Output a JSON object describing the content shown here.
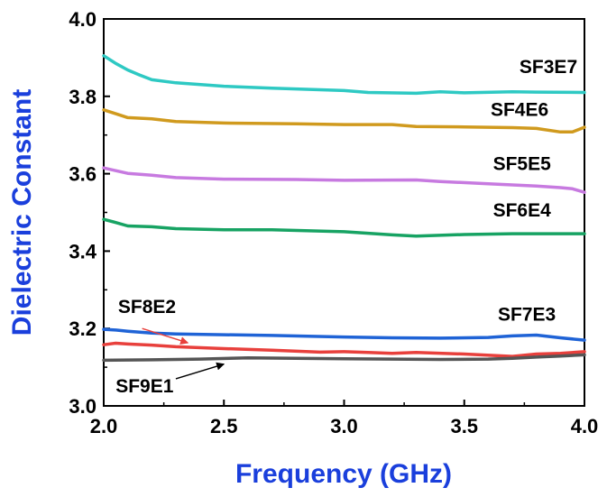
{
  "chart_data": {
    "type": "line",
    "title": "",
    "xlabel": "Frequency (GHz)",
    "ylabel": "Dielectric Constant",
    "xlim": [
      2.0,
      4.0
    ],
    "ylim": [
      3.0,
      4.0
    ],
    "x_ticks": [
      "2.0",
      "2.5",
      "3.0",
      "3.5",
      "4.0"
    ],
    "y_ticks": [
      "3.0",
      "3.2",
      "3.4",
      "3.6",
      "3.8",
      "4.0"
    ],
    "axis_title_color": "#1a3fdc",
    "grid": false,
    "series": [
      {
        "name": "SF3E7",
        "color": "#2ec9c3",
        "x": [
          2.0,
          2.05,
          2.1,
          2.15,
          2.2,
          2.3,
          2.5,
          2.7,
          3.0,
          3.1,
          3.3,
          3.4,
          3.5,
          3.7,
          3.8,
          4.0
        ],
        "y": [
          3.905,
          3.885,
          3.868,
          3.855,
          3.843,
          3.835,
          3.826,
          3.821,
          3.815,
          3.81,
          3.808,
          3.812,
          3.809,
          3.812,
          3.811,
          3.81
        ]
      },
      {
        "name": "SF4E6",
        "color": "#d09a1e",
        "x": [
          2.0,
          2.05,
          2.1,
          2.2,
          2.3,
          2.5,
          2.8,
          3.0,
          3.2,
          3.3,
          3.5,
          3.7,
          3.8,
          3.9,
          3.95,
          4.0
        ],
        "y": [
          3.765,
          3.755,
          3.745,
          3.742,
          3.735,
          3.731,
          3.729,
          3.727,
          3.727,
          3.722,
          3.721,
          3.719,
          3.717,
          3.708,
          3.708,
          3.72
        ]
      },
      {
        "name": "SF5E5",
        "color": "#c77ae0",
        "x": [
          2.0,
          2.05,
          2.1,
          2.2,
          2.3,
          2.5,
          2.8,
          3.0,
          3.3,
          3.4,
          3.6,
          3.8,
          3.9,
          3.95,
          4.0
        ],
        "y": [
          3.615,
          3.608,
          3.601,
          3.596,
          3.59,
          3.586,
          3.585,
          3.583,
          3.584,
          3.58,
          3.574,
          3.568,
          3.564,
          3.561,
          3.552
        ]
      },
      {
        "name": "SF6E4",
        "color": "#17a363",
        "x": [
          2.0,
          2.05,
          2.1,
          2.2,
          2.3,
          2.5,
          2.7,
          3.0,
          3.2,
          3.3,
          3.5,
          3.7,
          3.8,
          4.0
        ],
        "y": [
          3.482,
          3.474,
          3.465,
          3.463,
          3.458,
          3.455,
          3.455,
          3.45,
          3.442,
          3.439,
          3.443,
          3.445,
          3.445,
          3.445
        ]
      },
      {
        "name": "SF7E3",
        "color": "#1f63d6",
        "x": [
          2.0,
          2.05,
          2.1,
          2.2,
          2.3,
          2.5,
          2.7,
          3.0,
          3.2,
          3.4,
          3.6,
          3.7,
          3.8,
          3.9,
          4.0
        ],
        "y": [
          3.198,
          3.196,
          3.193,
          3.188,
          3.186,
          3.184,
          3.182,
          3.178,
          3.176,
          3.175,
          3.177,
          3.181,
          3.183,
          3.176,
          3.17
        ]
      },
      {
        "name": "SF8E2",
        "color": "#e8403c",
        "x": [
          2.0,
          2.05,
          2.1,
          2.2,
          2.3,
          2.5,
          2.7,
          2.9,
          3.0,
          3.1,
          3.2,
          3.3,
          3.5,
          3.7,
          3.8,
          3.9,
          4.0
        ],
        "y": [
          3.158,
          3.162,
          3.16,
          3.157,
          3.153,
          3.148,
          3.144,
          3.139,
          3.14,
          3.138,
          3.136,
          3.138,
          3.134,
          3.128,
          3.134,
          3.136,
          3.14
        ]
      },
      {
        "name": "SF9E1",
        "color": "#555555",
        "x": [
          2.0,
          2.2,
          2.4,
          2.6,
          2.8,
          3.0,
          3.2,
          3.4,
          3.6,
          3.7,
          3.8,
          3.9,
          4.0
        ],
        "y": [
          3.118,
          3.119,
          3.121,
          3.124,
          3.123,
          3.122,
          3.121,
          3.12,
          3.121,
          3.123,
          3.126,
          3.129,
          3.132
        ]
      }
    ],
    "annotations": [
      {
        "text": "SF3E7",
        "series": "SF3E7",
        "x": 3.85,
        "y": 3.86,
        "anchor": "middle"
      },
      {
        "text": "SF4E6",
        "series": "SF4E6",
        "x": 3.73,
        "y": 3.75,
        "anchor": "middle"
      },
      {
        "text": "SF5E5",
        "series": "SF5E5",
        "x": 3.74,
        "y": 3.61,
        "anchor": "middle"
      },
      {
        "text": "SF6E4",
        "series": "SF6E4",
        "x": 3.74,
        "y": 3.49,
        "anchor": "middle"
      },
      {
        "text": "SF7E3",
        "series": "SF7E3",
        "x": 3.76,
        "y": 3.22,
        "anchor": "middle"
      },
      {
        "text": "SF8E2",
        "series": "SF8E2",
        "x": 2.18,
        "y": 3.24,
        "anchor": "middle",
        "arrow_from": [
          2.16,
          3.2
        ],
        "arrow_to": [
          2.35,
          3.163
        ],
        "arrow_color": "#e8403c"
      },
      {
        "text": "SF9E1",
        "series": "SF9E1",
        "x": 2.17,
        "y": 3.035,
        "anchor": "middle",
        "arrow_from": [
          2.3,
          3.07
        ],
        "arrow_to": [
          2.5,
          3.108
        ],
        "arrow_color": "#000000"
      }
    ]
  }
}
